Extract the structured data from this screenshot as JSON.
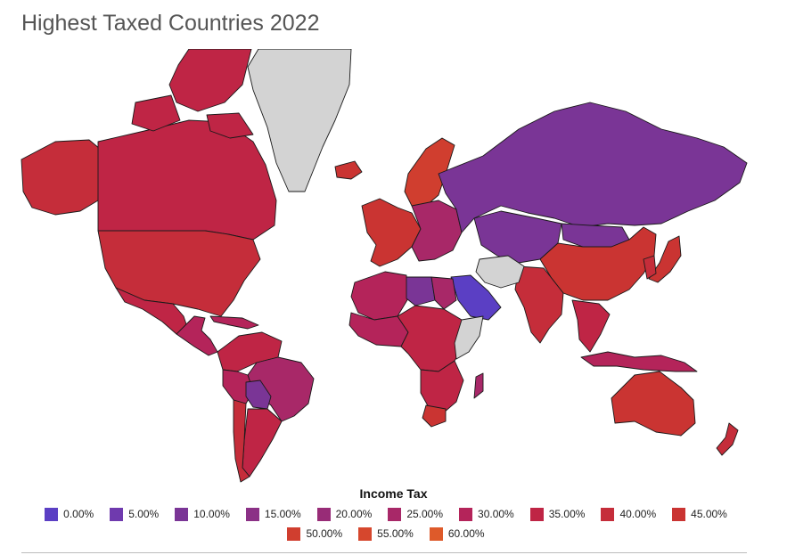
{
  "title": "Highest Taxed Countries 2022",
  "legend": {
    "title": "Income Tax",
    "items": [
      {
        "label": "0.00%",
        "color": "#5b3fc4"
      },
      {
        "label": "5.00%",
        "color": "#6f3aae"
      },
      {
        "label": "10.00%",
        "color": "#7a3596"
      },
      {
        "label": "15.00%",
        "color": "#8b3186"
      },
      {
        "label": "20.00%",
        "color": "#982c77"
      },
      {
        "label": "25.00%",
        "color": "#a82868"
      },
      {
        "label": "30.00%",
        "color": "#b4245a"
      },
      {
        "label": "35.00%",
        "color": "#bf2545"
      },
      {
        "label": "40.00%",
        "color": "#c52d3a"
      },
      {
        "label": "45.00%",
        "color": "#ca3432"
      },
      {
        "label": "50.00%",
        "color": "#d03e2f"
      },
      {
        "label": "55.00%",
        "color": "#d6472d"
      },
      {
        "label": "60.00%",
        "color": "#de5a2a"
      }
    ]
  },
  "map": {
    "no_data_color": "#d3d3d3",
    "regions": [
      {
        "id": "alaska",
        "tax": "40.00%"
      },
      {
        "id": "canada",
        "tax": "35.00%"
      },
      {
        "id": "canadian-arctic",
        "tax": "35.00%"
      },
      {
        "id": "usa",
        "tax": "40.00%"
      },
      {
        "id": "mexico",
        "tax": "35.00%"
      },
      {
        "id": "central-america",
        "tax": "30.00%"
      },
      {
        "id": "caribbean",
        "tax": "30.00%"
      },
      {
        "id": "colombia-venezuela",
        "tax": "35.00%"
      },
      {
        "id": "brazil",
        "tax": "25.00%"
      },
      {
        "id": "peru",
        "tax": "30.00%"
      },
      {
        "id": "bolivia-paraguay",
        "tax": "10.00%"
      },
      {
        "id": "argentina",
        "tax": "35.00%"
      },
      {
        "id": "chile",
        "tax": "40.00%"
      },
      {
        "id": "greenland",
        "tax": "no data"
      },
      {
        "id": "iceland",
        "tax": "45.00%"
      },
      {
        "id": "scandinavia",
        "tax": "50.00%"
      },
      {
        "id": "western-europe",
        "tax": "45.00%"
      },
      {
        "id": "eastern-europe",
        "tax": "25.00%"
      },
      {
        "id": "russia",
        "tax": "10.00%"
      },
      {
        "id": "kazakhstan-central-asia",
        "tax": "10.00%"
      },
      {
        "id": "mongolia",
        "tax": "10.00%"
      },
      {
        "id": "china",
        "tax": "45.00%"
      },
      {
        "id": "japan",
        "tax": "45.00%"
      },
      {
        "id": "korea",
        "tax": "40.00%"
      },
      {
        "id": "india",
        "tax": "40.00%"
      },
      {
        "id": "iran",
        "tax": "no data"
      },
      {
        "id": "southeast-asia",
        "tax": "35.00%"
      },
      {
        "id": "indonesia",
        "tax": "30.00%"
      },
      {
        "id": "australia",
        "tax": "45.00%"
      },
      {
        "id": "new-zealand",
        "tax": "40.00%"
      },
      {
        "id": "arabian-peninsula",
        "tax": "0.00%"
      },
      {
        "id": "north-africa",
        "tax": "30.00%"
      },
      {
        "id": "libya",
        "tax": "10.00%"
      },
      {
        "id": "egypt",
        "tax": "25.00%"
      },
      {
        "id": "west-africa",
        "tax": "30.00%"
      },
      {
        "id": "central-africa",
        "tax": "35.00%"
      },
      {
        "id": "horn-of-africa",
        "tax": "no data"
      },
      {
        "id": "southern-africa",
        "tax": "35.00%"
      },
      {
        "id": "south-africa",
        "tax": "45.00%"
      },
      {
        "id": "madagascar",
        "tax": "25.00%"
      }
    ]
  }
}
